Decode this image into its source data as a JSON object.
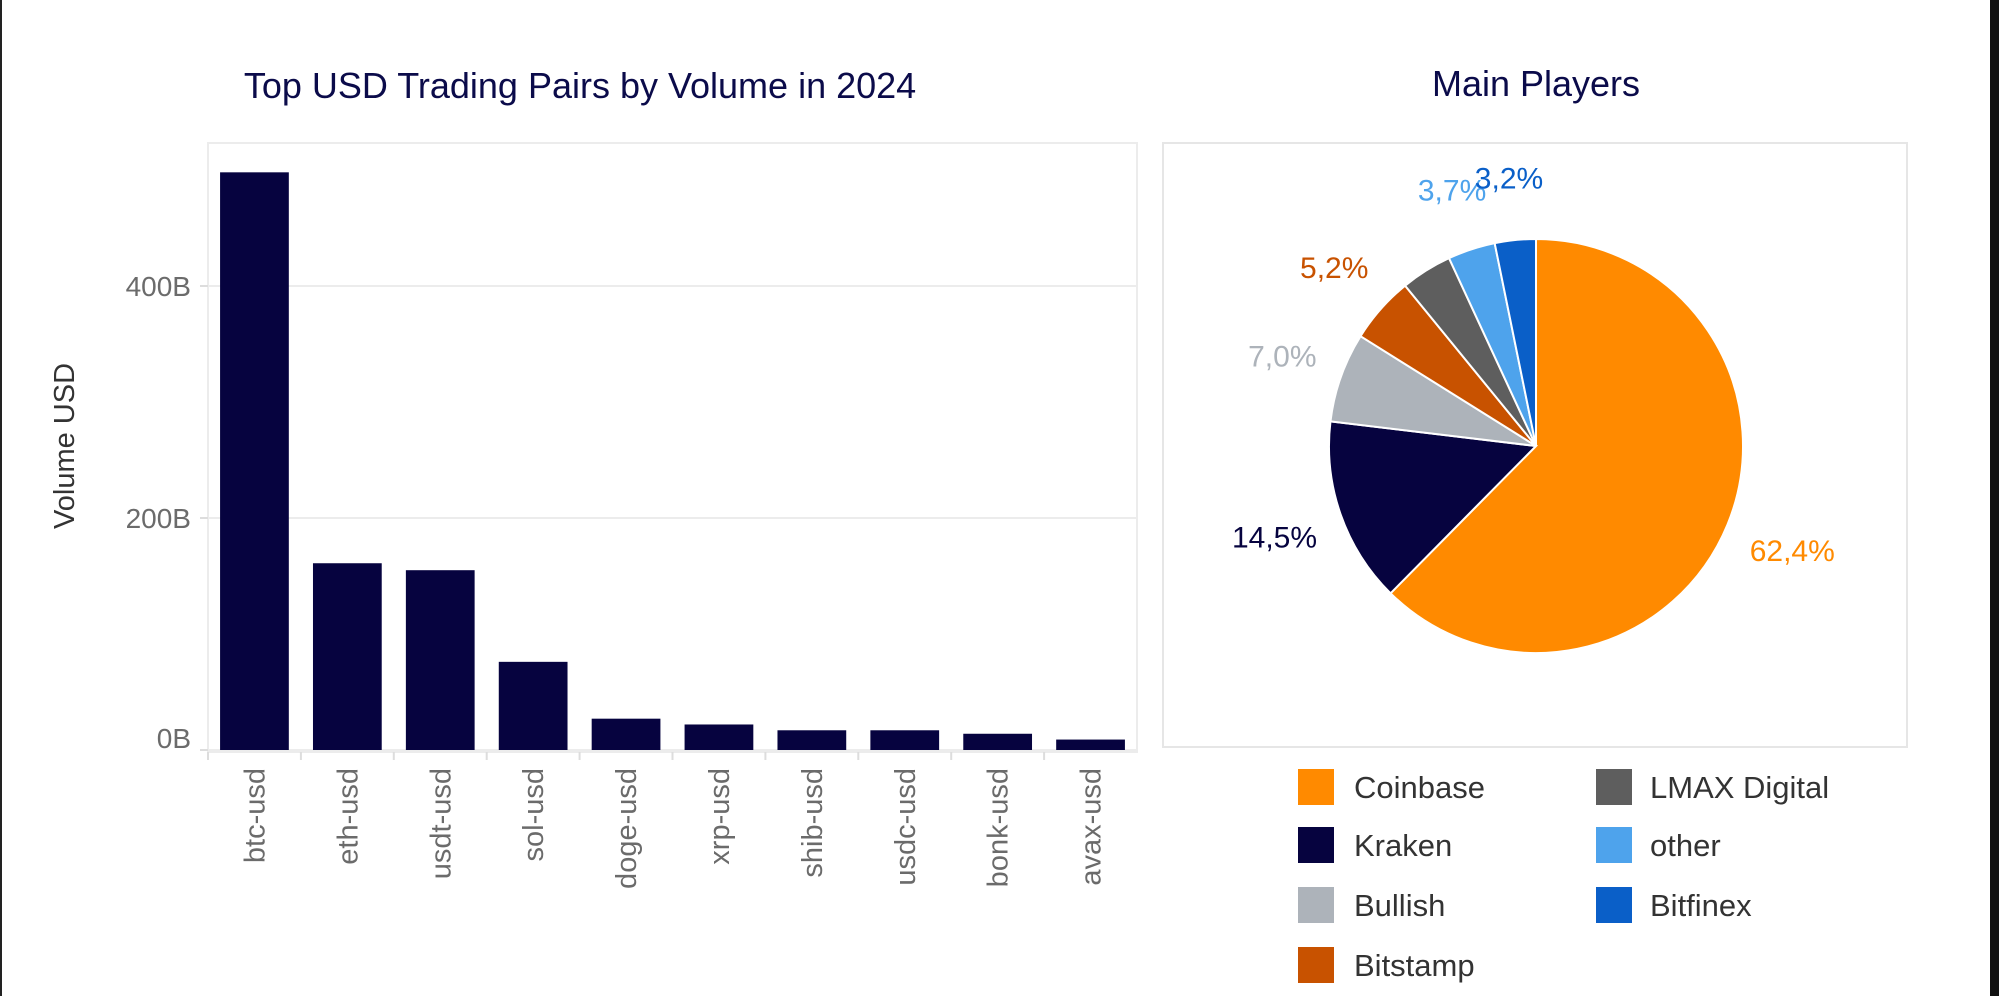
{
  "chart_data": [
    {
      "type": "bar",
      "title": "Top USD Trading Pairs by Volume in 2024",
      "xlabel": "",
      "ylabel": "Volume USD",
      "categories": [
        "btc-usd",
        "eth-usd",
        "usdt-usd",
        "sol-usd",
        "doge-usd",
        "xrp-usd",
        "shib-usd",
        "usdc-usd",
        "bonk-usd",
        "avax-usd"
      ],
      "values": [
        498,
        161,
        155,
        76,
        27,
        22,
        17,
        17,
        14,
        9
      ],
      "value_unit": "B USD",
      "yticks": [
        0,
        200,
        400
      ],
      "ytick_labels": [
        "0B",
        "200B",
        "400B"
      ],
      "ylim": [
        0,
        510
      ],
      "grid": true,
      "bar_color": "#06033F"
    },
    {
      "type": "pie",
      "title": "Main Players",
      "start": "12 o'clock, clockwise",
      "slices": [
        {
          "name": "Coinbase",
          "value": 62.4,
          "label": "62,4%",
          "color": "#FF8A00"
        },
        {
          "name": "Kraken",
          "value": 14.5,
          "label": "14,5%",
          "color": "#06033F"
        },
        {
          "name": "Bullish",
          "value": 7.0,
          "label": "7,0%",
          "color": "#ADB3BA"
        },
        {
          "name": "Bitstamp",
          "value": 5.2,
          "label": "5,2%",
          "color": "#C85200"
        },
        {
          "name": "LMAX Digital",
          "value": 4.0,
          "label": "",
          "color": "#5E5E5E"
        },
        {
          "name": "other",
          "value": 3.7,
          "label": "3,7%",
          "color": "#4EA3EC"
        },
        {
          "name": "Bitfinex",
          "value": 3.2,
          "label": "3,2%",
          "color": "#0A5FC8"
        }
      ],
      "legend_placement": "bottom",
      "legend_order": [
        "Coinbase",
        "Kraken",
        "Bullish",
        "Bitstamp",
        "LMAX Digital",
        "other",
        "Bitfinex"
      ]
    }
  ]
}
